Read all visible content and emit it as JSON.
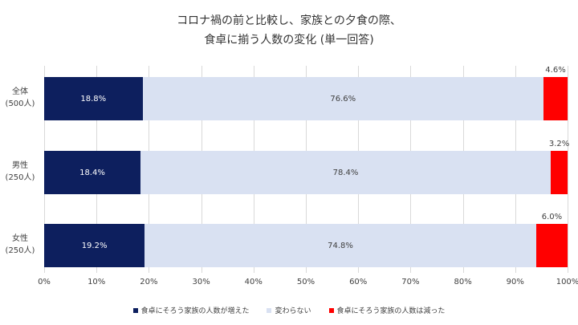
{
  "chart_data": {
    "type": "bar",
    "orientation": "horizontal",
    "stacked": "100%",
    "title": "コロナ禍の前と比較し、家族との夕食の際、\n食卓に揃う人数の変化 (単一回答)",
    "title_lines": [
      "コロナ禍の前と比較し、家族との夕食の際、",
      "食卓に揃う人数の変化 (単一回答)"
    ],
    "categories": [
      {
        "name": "全体",
        "n": "(500人)"
      },
      {
        "name": "男性",
        "n": "(250人)"
      },
      {
        "name": "女性",
        "n": "(250人)"
      }
    ],
    "series": [
      {
        "name": "食卓にそろう家族の人数が増えた",
        "color": "#0d1f5e",
        "values": [
          18.8,
          18.4,
          19.2
        ],
        "labels": [
          "18.8%",
          "18.4%",
          "19.2%"
        ]
      },
      {
        "name": "変わらない",
        "color": "#d9e1f2",
        "values": [
          76.6,
          78.4,
          74.8
        ],
        "labels": [
          "76.6%",
          "78.4%",
          "74.8%"
        ]
      },
      {
        "name": "食卓にそろう家族の人数は減った",
        "color": "#ff0000",
        "values": [
          4.6,
          3.2,
          6.0
        ],
        "labels": [
          "4.6%",
          "3.2%",
          "6.0%"
        ]
      }
    ],
    "xlabel": "",
    "ylabel": "",
    "xlim": [
      0,
      100
    ],
    "xticks": [
      "0%",
      "10%",
      "20%",
      "30%",
      "40%",
      "50%",
      "60%",
      "70%",
      "80%",
      "90%",
      "100%"
    ],
    "grid": true,
    "legend_position": "bottom"
  }
}
